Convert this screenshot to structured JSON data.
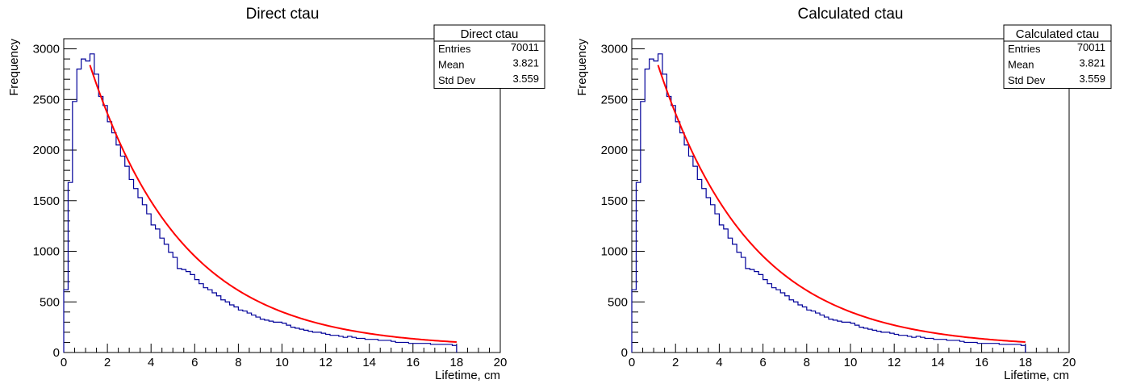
{
  "chart_data": [
    {
      "type": "histogram",
      "title": "Direct ctau",
      "xlabel": "Lifetime, cm",
      "ylabel": "Frequency",
      "xlim": [
        0,
        20
      ],
      "ylim": [
        0,
        3100
      ],
      "x_ticks": [
        0,
        2,
        4,
        6,
        8,
        10,
        12,
        14,
        16,
        18,
        20
      ],
      "y_ticks": [
        0,
        500,
        1000,
        1500,
        2000,
        2500,
        3000
      ],
      "bin_width": 0.2,
      "bins_x_start": 0,
      "counts": [
        620,
        1680,
        2480,
        2800,
        2900,
        2880,
        2950,
        2750,
        2530,
        2440,
        2280,
        2170,
        2050,
        1940,
        1840,
        1710,
        1620,
        1530,
        1460,
        1370,
        1260,
        1220,
        1130,
        1070,
        990,
        940,
        830,
        820,
        800,
        770,
        720,
        680,
        640,
        620,
        590,
        560,
        520,
        500,
        470,
        450,
        420,
        410,
        390,
        370,
        350,
        330,
        320,
        310,
        300,
        300,
        290,
        270,
        250,
        240,
        230,
        220,
        210,
        200,
        200,
        190,
        180,
        170,
        170,
        160,
        150,
        160,
        150,
        140,
        140,
        130,
        130,
        130,
        120,
        120,
        120,
        110,
        100,
        100,
        100,
        90,
        90,
        90,
        90,
        90,
        80,
        80,
        80,
        80,
        80,
        70
      ],
      "fit": {
        "color": "#ff0000",
        "x_range": [
          1.2,
          18
        ],
        "amplitude": 3700,
        "decay_length": 4.25,
        "offset": 50
      },
      "line_color": "#000099",
      "stats": {
        "header": "Direct ctau",
        "rows": [
          {
            "label": "Entries",
            "value": "70011"
          },
          {
            "label": "Mean",
            "value": "3.821"
          },
          {
            "label": "Std Dev",
            "value": "3.559"
          }
        ]
      }
    },
    {
      "type": "histogram",
      "title": "Calculated ctau",
      "xlabel": "Lifetime, cm",
      "ylabel": "Frequency",
      "xlim": [
        0,
        20
      ],
      "ylim": [
        0,
        3100
      ],
      "x_ticks": [
        0,
        2,
        4,
        6,
        8,
        10,
        12,
        14,
        16,
        18,
        20
      ],
      "y_ticks": [
        0,
        500,
        1000,
        1500,
        2000,
        2500,
        3000
      ],
      "bin_width": 0.2,
      "bins_x_start": 0,
      "counts": [
        620,
        1680,
        2480,
        2800,
        2900,
        2880,
        2950,
        2750,
        2530,
        2440,
        2280,
        2170,
        2050,
        1940,
        1840,
        1710,
        1620,
        1530,
        1460,
        1370,
        1260,
        1220,
        1130,
        1070,
        990,
        940,
        830,
        820,
        800,
        770,
        720,
        680,
        640,
        620,
        590,
        560,
        520,
        500,
        470,
        450,
        420,
        410,
        390,
        370,
        350,
        330,
        320,
        310,
        300,
        300,
        290,
        270,
        250,
        240,
        230,
        220,
        210,
        200,
        200,
        190,
        180,
        170,
        170,
        160,
        150,
        160,
        150,
        140,
        140,
        130,
        130,
        130,
        120,
        120,
        120,
        110,
        100,
        100,
        100,
        90,
        90,
        90,
        90,
        90,
        80,
        80,
        80,
        80,
        80,
        70
      ],
      "fit": {
        "color": "#ff0000",
        "x_range": [
          1.2,
          18
        ],
        "amplitude": 3700,
        "decay_length": 4.25,
        "offset": 50
      },
      "line_color": "#000099",
      "stats": {
        "header": "Calculated ctau",
        "rows": [
          {
            "label": "Entries",
            "value": "70011"
          },
          {
            "label": "Mean",
            "value": "3.821"
          },
          {
            "label": "Std Dev",
            "value": "3.559"
          }
        ]
      }
    }
  ]
}
